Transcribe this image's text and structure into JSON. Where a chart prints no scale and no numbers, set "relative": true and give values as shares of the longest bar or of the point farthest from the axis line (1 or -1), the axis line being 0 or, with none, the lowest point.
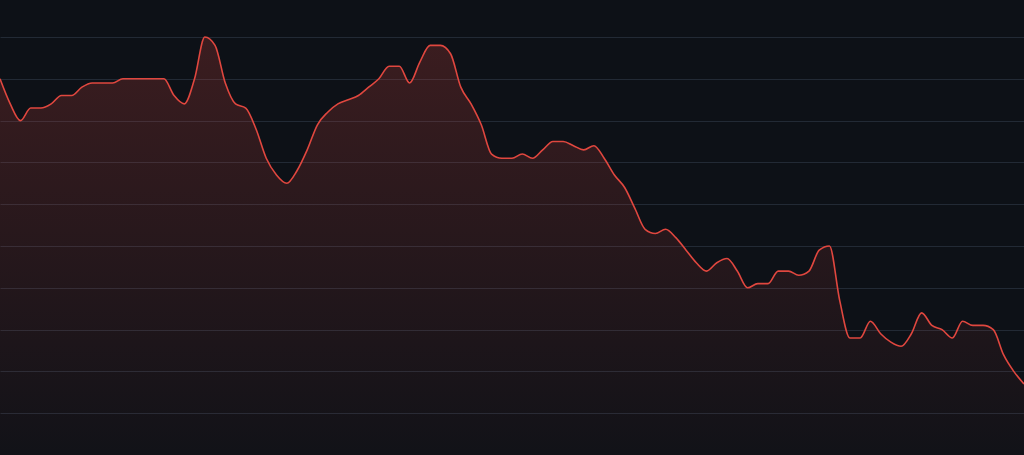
{
  "chart_data": {
    "type": "area",
    "relative": true,
    "grid": "y",
    "categories": [
      null,
      null,
      null,
      null,
      null,
      null,
      null,
      null,
      null,
      null,
      null,
      null,
      null,
      null,
      null,
      null,
      null,
      null,
      null,
      null,
      null,
      null,
      null,
      null,
      null,
      null,
      null,
      null,
      null,
      null,
      null,
      null,
      null,
      null,
      null,
      null,
      null,
      null,
      null,
      null,
      null,
      null,
      null,
      null,
      null,
      null,
      null,
      null,
      null,
      null,
      null,
      null,
      null,
      null,
      null,
      null,
      null,
      null,
      null,
      null,
      null,
      null,
      null,
      null,
      null,
      null,
      null,
      null,
      null,
      null,
      null,
      null,
      null,
      null,
      null,
      null,
      null,
      null,
      null,
      null,
      null,
      null,
      null,
      null,
      null,
      null,
      null,
      null,
      null,
      null,
      null,
      null,
      null,
      null,
      null,
      null,
      null,
      null,
      null,
      null,
      null
    ],
    "series": [
      {
        "color": "#e0473f",
        "values": [
          0.9,
          0.84,
          0.8,
          0.83,
          0.83,
          0.84,
          0.86,
          0.86,
          0.88,
          0.89,
          0.89,
          0.89,
          0.9,
          0.9,
          0.9,
          0.9,
          0.9,
          0.86,
          0.84,
          0.9,
          1.0,
          0.98,
          0.89,
          0.84,
          0.83,
          0.78,
          0.71,
          0.67,
          0.65,
          0.68,
          0.73,
          0.79,
          0.82,
          0.84,
          0.85,
          0.86,
          0.88,
          0.9,
          0.93,
          0.93,
          0.89,
          0.94,
          0.98,
          0.98,
          0.96,
          0.88,
          0.84,
          0.79,
          0.72,
          0.71,
          0.71,
          0.72,
          0.71,
          0.73,
          0.75,
          0.75,
          0.74,
          0.73,
          0.74,
          0.71,
          0.67,
          0.64,
          0.59,
          0.54,
          0.53,
          0.54,
          0.52,
          0.49,
          0.46,
          0.44,
          0.46,
          0.47,
          0.44,
          0.4,
          0.41,
          0.41,
          0.44,
          0.44,
          0.43,
          0.44,
          0.49,
          0.5,
          0.37,
          0.28,
          0.28,
          0.32,
          0.29,
          0.27,
          0.26,
          0.29,
          0.34,
          0.31,
          0.3,
          0.28,
          0.32,
          0.31,
          0.31,
          0.3,
          0.24,
          0.2,
          0.17
        ]
      }
    ]
  }
}
